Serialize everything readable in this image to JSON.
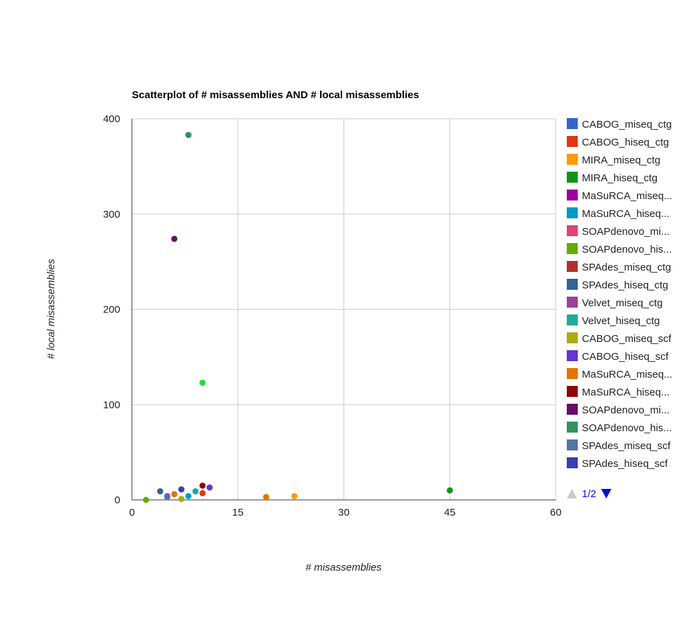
{
  "chart_data": {
    "type": "scatter",
    "title": "Scatterplot of # misassemblies AND # local misassemblies",
    "xlabel": "# misassemblies",
    "ylabel": "# local misassemblies",
    "xlim": [
      0,
      60
    ],
    "ylim": [
      0,
      400
    ],
    "xticks": [
      "0",
      "15",
      "30",
      "45",
      "60"
    ],
    "yticks": [
      "0",
      "100",
      "200",
      "300",
      "400"
    ],
    "grid": true,
    "legend_position": "right",
    "series": [
      {
        "name": "CABOG_miseq_ctg",
        "legend_label": "CABOG_miseq_ctg",
        "color": "#3366cc",
        "points": []
      },
      {
        "name": "CABOG_hiseq_ctg",
        "legend_label": "CABOG_hiseq_ctg",
        "color": "#dc3912",
        "points": [
          [
            10,
            7
          ]
        ]
      },
      {
        "name": "MIRA_miseq_ctg",
        "legend_label": "MIRA_miseq_ctg",
        "color": "#ff9900",
        "points": [
          [
            23,
            4
          ]
        ]
      },
      {
        "name": "MIRA_hiseq_ctg",
        "legend_label": "MIRA_hiseq_ctg",
        "color": "#109618",
        "points": [
          [
            45,
            10
          ]
        ]
      },
      {
        "name": "MaSuRCA_miseq_ctg",
        "legend_label": "MaSuRCA_miseq...",
        "color": "#990099",
        "points": []
      },
      {
        "name": "MaSuRCA_hiseq_ctg",
        "legend_label": "MaSuRCA_hiseq...",
        "color": "#0099c6",
        "points": [
          [
            8,
            4
          ]
        ]
      },
      {
        "name": "SOAPdenovo_miseq_ctg",
        "legend_label": "SOAPdenovo_mi...",
        "color": "#dd4477",
        "points": []
      },
      {
        "name": "SOAPdenovo_hiseq_ctg",
        "legend_label": "SOAPdenovo_his...",
        "color": "#66aa00",
        "points": [
          [
            2,
            0
          ]
        ]
      },
      {
        "name": "SPAdes_miseq_ctg",
        "legend_label": "SPAdes_miseq_ctg",
        "color": "#b82e2e",
        "points": []
      },
      {
        "name": "SPAdes_hiseq_ctg",
        "legend_label": "SPAdes_hiseq_ctg",
        "color": "#316395",
        "points": [
          [
            4,
            9
          ]
        ]
      },
      {
        "name": "Velvet_miseq_ctg",
        "legend_label": "Velvet_miseq_ctg",
        "color": "#994499",
        "points": [
          [
            5,
            4
          ]
        ]
      },
      {
        "name": "Velvet_hiseq_ctg",
        "legend_label": "Velvet_hiseq_ctg",
        "color": "#22aa99",
        "points": [
          [
            9,
            9
          ]
        ]
      },
      {
        "name": "CABOG_miseq_scf",
        "legend_label": "CABOG_miseq_scf",
        "color": "#aaaa11",
        "points": [
          [
            7,
            1
          ]
        ]
      },
      {
        "name": "CABOG_hiseq_scf",
        "legend_label": "CABOG_hiseq_scf",
        "color": "#6633cc",
        "points": [
          [
            11,
            13
          ]
        ]
      },
      {
        "name": "MaSuRCA_miseq_scf",
        "legend_label": "MaSuRCA_miseq...",
        "color": "#e67300",
        "points": [
          [
            19,
            3
          ],
          [
            6,
            6
          ]
        ]
      },
      {
        "name": "MaSuRCA_hiseq_scf",
        "legend_label": "MaSuRCA_hiseq...",
        "color": "#8b0707",
        "points": [
          [
            10,
            15
          ]
        ]
      },
      {
        "name": "SOAPdenovo_miseq_scf",
        "legend_label": "SOAPdenovo_mi...",
        "color": "#651067",
        "points": [
          [
            6,
            274
          ]
        ]
      },
      {
        "name": "SOAPdenovo_hiseq_scf",
        "legend_label": "SOAPdenovo_his...",
        "color": "#329262",
        "points": [
          [
            8,
            383
          ]
        ]
      },
      {
        "name": "SPAdes_miseq_scf",
        "legend_label": "SPAdes_miseq_scf",
        "color": "#5574a6",
        "points": [
          [
            5,
            3
          ]
        ]
      },
      {
        "name": "SPAdes_hiseq_scf",
        "legend_label": "SPAdes_hiseq_scf",
        "color": "#3b3eac",
        "points": [
          [
            7,
            11
          ]
        ]
      },
      {
        "name": "",
        "legend_label": "",
        "color": "#22dd33",
        "points": [
          [
            10,
            123
          ]
        ]
      }
    ]
  },
  "legend_pager": {
    "text": "1/2",
    "prev_icon": "triangle-up-icon",
    "next_icon": "triangle-down-icon",
    "prev_color": "#cccccc",
    "next_color": "#0011cc"
  }
}
